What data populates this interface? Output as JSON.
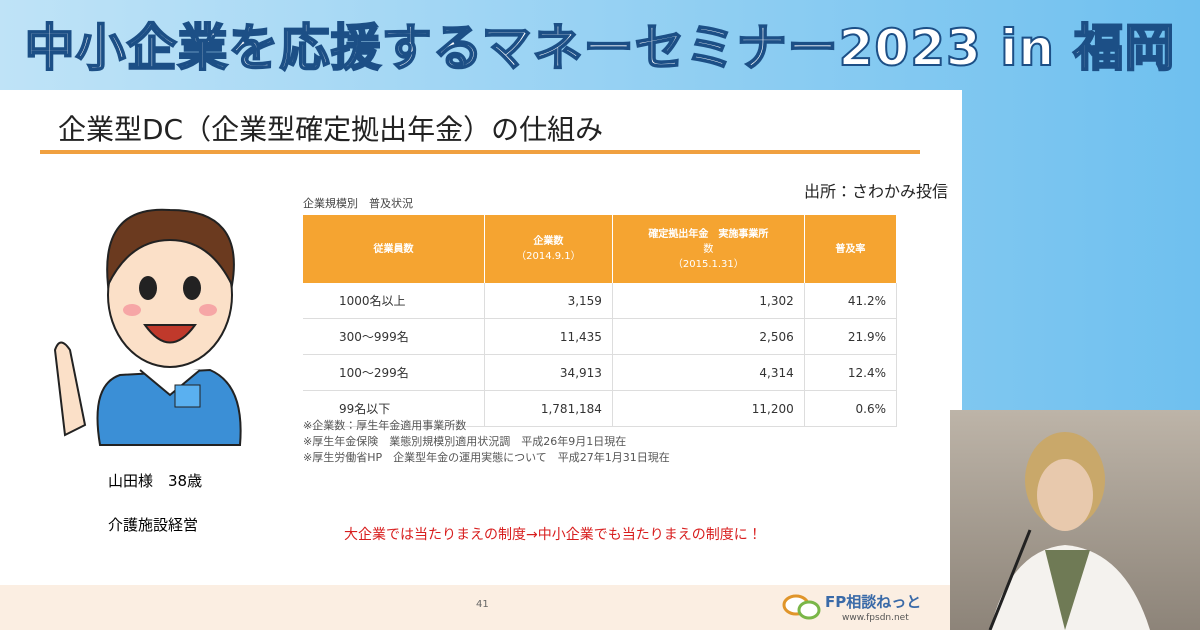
{
  "banner": {
    "title": "中小企業を応援するマネーセミナー2023 in 福岡"
  },
  "slide": {
    "title": "企業型DC（企業型確定拠出年金）の仕組み",
    "source": "出所：さわかみ投信",
    "person": {
      "name": "山田様　38歳",
      "job": "介護施設経営"
    },
    "table": {
      "caption": "企業規模別　普及状況",
      "header": [
        [
          "従業員数"
        ],
        [
          "企業数",
          "（2014.9.1）"
        ],
        [
          "確定拠出年金　実施事業所",
          "数",
          "（2015.1.31）"
        ],
        [
          "普及率"
        ]
      ],
      "rows": [
        [
          "1000名以上",
          "3,159",
          "1,302",
          "41.2%"
        ],
        [
          "300～999名",
          "11,435",
          "2,506",
          "21.9%"
        ],
        [
          "100～299名",
          "34,913",
          "4,314",
          "12.4%"
        ],
        [
          "99名以下",
          "1,781,184",
          "11,200",
          "0.6%"
        ]
      ],
      "notes": [
        "※企業数：厚生年金適用事業所数",
        "※厚生年金保険　業態別規模別適用状況調　平成26年9月1日現在",
        "※厚生労働省HP　企業型年金の運用実態について　平成27年1月31日現在"
      ]
    },
    "callout": "大企業では当たりまえの制度→中小企業でも当たりまえの制度に！",
    "page_number": "41",
    "logo": {
      "name": "FP相談ねっと",
      "url": "www.fpsdn.net"
    }
  }
}
